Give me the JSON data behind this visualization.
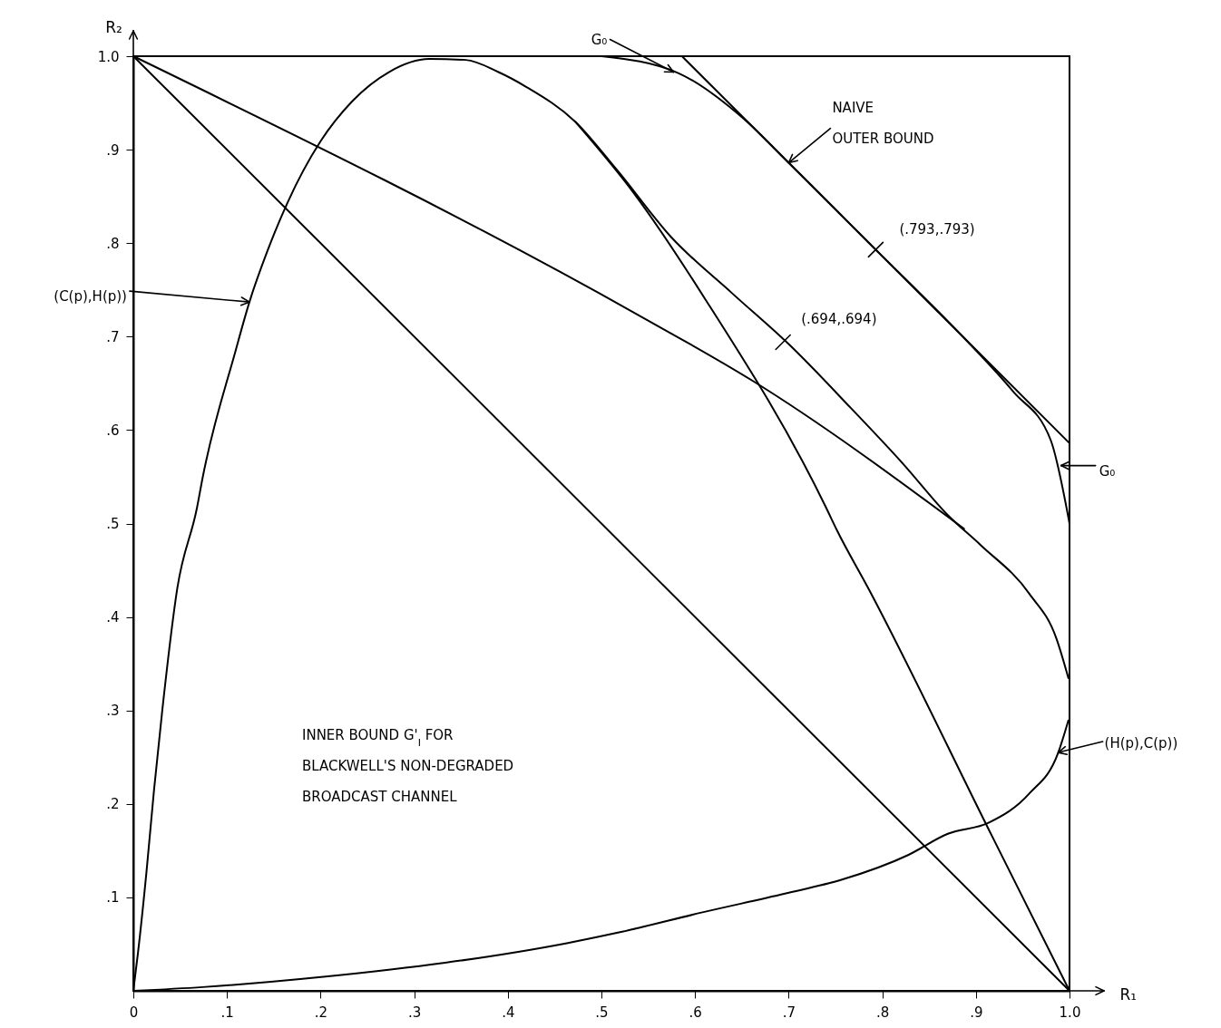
{
  "chart_data": {
    "type": "line",
    "xlabel": "R₁",
    "ylabel": "R₂",
    "xlim": [
      0,
      1
    ],
    "ylim": [
      0,
      1
    ],
    "xticks": [
      0,
      {
        "value": 0.1,
        "label": ".1"
      },
      {
        "value": 0.2,
        "label": ".2"
      },
      {
        "value": 0.3,
        "label": ".3"
      },
      {
        "value": 0.4,
        "label": ".4"
      },
      {
        "value": 0.5,
        "label": ".5"
      },
      {
        "value": 0.6,
        "label": ".6"
      },
      {
        "value": 0.7,
        "label": ".7"
      },
      {
        "value": 0.8,
        "label": ".8"
      },
      {
        "value": 0.9,
        "label": ".9"
      },
      {
        "value": 1,
        "label": "1.0"
      }
    ],
    "yticks": [
      {
        "value": 0.1,
        "label": ".1"
      },
      {
        "value": 0.2,
        "label": ".2"
      },
      {
        "value": 0.3,
        "label": ".3"
      },
      {
        "value": 0.4,
        "label": ".4"
      },
      {
        "value": 0.5,
        "label": ".5"
      },
      {
        "value": 0.6,
        "label": ".6"
      },
      {
        "value": 0.7,
        "label": ".7"
      },
      {
        "value": 0.8,
        "label": ".8"
      },
      {
        "value": 0.9,
        "label": ".9"
      },
      {
        "value": 1,
        "label": "1.0"
      }
    ],
    "grid": false,
    "marker": "none",
    "line_style": "solid",
    "series": [
      {
        "color": "#000000",
        "x": [
          0,
          0.005,
          0.014,
          0.022,
          0.031,
          0.047,
          0.068,
          0.074,
          0.109,
          0.124,
          0.143,
          0.165,
          0.2,
          0.234,
          0.273,
          0.316,
          0.355,
          0.39,
          0.42,
          0.472,
          0.516,
          0.574,
          0.64,
          0.701,
          0.766,
          0.823,
          0.87,
          0.905,
          0.957,
          0.986,
          0.999
        ],
        "values": [
          0,
          0.041,
          0.127,
          0.214,
          0.301,
          0.431,
          0.517,
          0.549,
          0.684,
          0.737,
          0.791,
          0.844,
          0.909,
          0.952,
          0.983,
          0.997,
          0.996,
          0.983,
          0.967,
          0.93,
          0.879,
          0.807,
          0.746,
          0.691,
          0.624,
          0.563,
          0.509,
          0.477,
          0.425,
          0.377,
          0.334
        ]
      },
      {
        "color": "#000000",
        "x": [
          0,
          0.074,
          0.203,
          0.333,
          0.463,
          0.521,
          0.608,
          0.696,
          0.757,
          0.827,
          0.87,
          0.914,
          0.957,
          0.988,
          0.999
        ],
        "values": [
          0,
          0.004,
          0.015,
          0.03,
          0.051,
          0.063,
          0.084,
          0.104,
          0.119,
          0.145,
          0.168,
          0.18,
          0.211,
          0.255,
          0.29
        ]
      },
      {
        "color": "#000000",
        "x": [
          0.472,
          0.535,
          0.609,
          0.74,
          0.751,
          0.786,
          0.918,
          1
        ],
        "values": [
          0.93,
          0.853,
          0.743,
          0.517,
          0.494,
          0.429,
          0.164,
          0
        ]
      },
      {
        "color": "#000000",
        "x": [
          0,
          0.536,
          0.661,
          0.888
        ],
        "values": [
          1,
          0.725,
          0.653,
          0.494
        ]
      },
      {
        "color": "#000000",
        "x": [
          0,
          1
        ],
        "values": [
          1,
          0
        ]
      },
      {
        "color": "#000000",
        "x": [
          0.586,
          1
        ],
        "values": [
          1,
          0.586
        ]
      },
      {
        "color": "#000000",
        "x": [
          0.5,
          0.582,
          0.652,
          0.7,
          0.793,
          0.886,
          0.94,
          0.98,
          1
        ],
        "values": [
          1,
          0.982,
          0.933,
          0.886,
          0.793,
          0.7,
          0.641,
          0.589,
          0.5
        ]
      }
    ],
    "annotations": [
      {
        "text": "G₀",
        "x": 0.577,
        "y": 0.983
      },
      {
        "text": "NAIVE\nOUTER BOUND",
        "x": 0.7,
        "y": 0.886
      },
      {
        "text": "(.793,.793)",
        "x": 0.793,
        "y": 0.793
      },
      {
        "text": "(.694,.694)",
        "x": 0.694,
        "y": 0.694
      },
      {
        "text": "(C(p),H(p))",
        "x": 0.124,
        "y": 0.737
      },
      {
        "text": "(H(p),C(p))",
        "x": 0.988,
        "y": 0.255
      },
      {
        "text": "G₀",
        "x": 0.991,
        "y": 0.562
      },
      "INNER BOUND G'$_{I}$ FOR\nBLACKWELL'S NON-DEGRADED\nBROADCAST CHANNEL"
    ]
  }
}
